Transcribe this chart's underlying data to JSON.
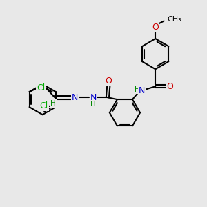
{
  "background_color": "#e8e8e8",
  "bond_color": "#000000",
  "bond_width": 1.5,
  "atom_colors": {
    "C": "#000000",
    "N": "#0000cc",
    "O": "#cc0000",
    "Cl": "#00aa00",
    "H": "#008800"
  },
  "font_size_atom": 9,
  "font_size_small": 7.5
}
